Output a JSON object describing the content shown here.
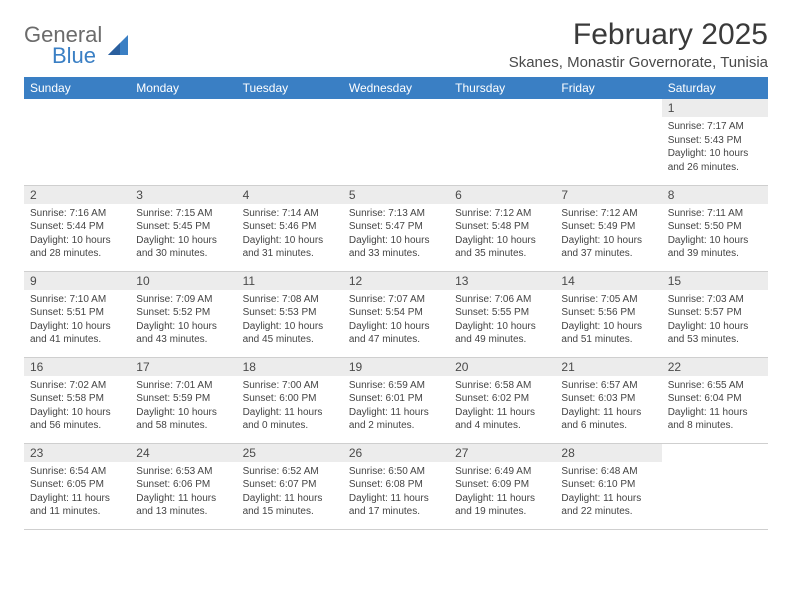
{
  "brand": {
    "name_top": "General",
    "name_bottom": "Blue",
    "text_color": "#6b6b6b",
    "accent_color": "#3a7fc4"
  },
  "title": "February 2025",
  "location": "Skanes, Monastir Governorate, Tunisia",
  "header_bg": "#3a7fc4",
  "header_text_color": "#ffffff",
  "daynum_bg": "#ececec",
  "grid_line_color": "#cfcfcf",
  "background_color": "#ffffff",
  "body_text_color": "#444444",
  "title_fontsize": 30,
  "location_fontsize": 15,
  "header_fontsize": 12,
  "body_fontsize": 10,
  "day_headers": [
    "Sunday",
    "Monday",
    "Tuesday",
    "Wednesday",
    "Thursday",
    "Friday",
    "Saturday"
  ],
  "weeks": [
    [
      null,
      null,
      null,
      null,
      null,
      null,
      {
        "n": "1",
        "sunrise": "Sunrise: 7:17 AM",
        "sunset": "Sunset: 5:43 PM",
        "daylight": "Daylight: 10 hours and 26 minutes."
      }
    ],
    [
      {
        "n": "2",
        "sunrise": "Sunrise: 7:16 AM",
        "sunset": "Sunset: 5:44 PM",
        "daylight": "Daylight: 10 hours and 28 minutes."
      },
      {
        "n": "3",
        "sunrise": "Sunrise: 7:15 AM",
        "sunset": "Sunset: 5:45 PM",
        "daylight": "Daylight: 10 hours and 30 minutes."
      },
      {
        "n": "4",
        "sunrise": "Sunrise: 7:14 AM",
        "sunset": "Sunset: 5:46 PM",
        "daylight": "Daylight: 10 hours and 31 minutes."
      },
      {
        "n": "5",
        "sunrise": "Sunrise: 7:13 AM",
        "sunset": "Sunset: 5:47 PM",
        "daylight": "Daylight: 10 hours and 33 minutes."
      },
      {
        "n": "6",
        "sunrise": "Sunrise: 7:12 AM",
        "sunset": "Sunset: 5:48 PM",
        "daylight": "Daylight: 10 hours and 35 minutes."
      },
      {
        "n": "7",
        "sunrise": "Sunrise: 7:12 AM",
        "sunset": "Sunset: 5:49 PM",
        "daylight": "Daylight: 10 hours and 37 minutes."
      },
      {
        "n": "8",
        "sunrise": "Sunrise: 7:11 AM",
        "sunset": "Sunset: 5:50 PM",
        "daylight": "Daylight: 10 hours and 39 minutes."
      }
    ],
    [
      {
        "n": "9",
        "sunrise": "Sunrise: 7:10 AM",
        "sunset": "Sunset: 5:51 PM",
        "daylight": "Daylight: 10 hours and 41 minutes."
      },
      {
        "n": "10",
        "sunrise": "Sunrise: 7:09 AM",
        "sunset": "Sunset: 5:52 PM",
        "daylight": "Daylight: 10 hours and 43 minutes."
      },
      {
        "n": "11",
        "sunrise": "Sunrise: 7:08 AM",
        "sunset": "Sunset: 5:53 PM",
        "daylight": "Daylight: 10 hours and 45 minutes."
      },
      {
        "n": "12",
        "sunrise": "Sunrise: 7:07 AM",
        "sunset": "Sunset: 5:54 PM",
        "daylight": "Daylight: 10 hours and 47 minutes."
      },
      {
        "n": "13",
        "sunrise": "Sunrise: 7:06 AM",
        "sunset": "Sunset: 5:55 PM",
        "daylight": "Daylight: 10 hours and 49 minutes."
      },
      {
        "n": "14",
        "sunrise": "Sunrise: 7:05 AM",
        "sunset": "Sunset: 5:56 PM",
        "daylight": "Daylight: 10 hours and 51 minutes."
      },
      {
        "n": "15",
        "sunrise": "Sunrise: 7:03 AM",
        "sunset": "Sunset: 5:57 PM",
        "daylight": "Daylight: 10 hours and 53 minutes."
      }
    ],
    [
      {
        "n": "16",
        "sunrise": "Sunrise: 7:02 AM",
        "sunset": "Sunset: 5:58 PM",
        "daylight": "Daylight: 10 hours and 56 minutes."
      },
      {
        "n": "17",
        "sunrise": "Sunrise: 7:01 AM",
        "sunset": "Sunset: 5:59 PM",
        "daylight": "Daylight: 10 hours and 58 minutes."
      },
      {
        "n": "18",
        "sunrise": "Sunrise: 7:00 AM",
        "sunset": "Sunset: 6:00 PM",
        "daylight": "Daylight: 11 hours and 0 minutes."
      },
      {
        "n": "19",
        "sunrise": "Sunrise: 6:59 AM",
        "sunset": "Sunset: 6:01 PM",
        "daylight": "Daylight: 11 hours and 2 minutes."
      },
      {
        "n": "20",
        "sunrise": "Sunrise: 6:58 AM",
        "sunset": "Sunset: 6:02 PM",
        "daylight": "Daylight: 11 hours and 4 minutes."
      },
      {
        "n": "21",
        "sunrise": "Sunrise: 6:57 AM",
        "sunset": "Sunset: 6:03 PM",
        "daylight": "Daylight: 11 hours and 6 minutes."
      },
      {
        "n": "22",
        "sunrise": "Sunrise: 6:55 AM",
        "sunset": "Sunset: 6:04 PM",
        "daylight": "Daylight: 11 hours and 8 minutes."
      }
    ],
    [
      {
        "n": "23",
        "sunrise": "Sunrise: 6:54 AM",
        "sunset": "Sunset: 6:05 PM",
        "daylight": "Daylight: 11 hours and 11 minutes."
      },
      {
        "n": "24",
        "sunrise": "Sunrise: 6:53 AM",
        "sunset": "Sunset: 6:06 PM",
        "daylight": "Daylight: 11 hours and 13 minutes."
      },
      {
        "n": "25",
        "sunrise": "Sunrise: 6:52 AM",
        "sunset": "Sunset: 6:07 PM",
        "daylight": "Daylight: 11 hours and 15 minutes."
      },
      {
        "n": "26",
        "sunrise": "Sunrise: 6:50 AM",
        "sunset": "Sunset: 6:08 PM",
        "daylight": "Daylight: 11 hours and 17 minutes."
      },
      {
        "n": "27",
        "sunrise": "Sunrise: 6:49 AM",
        "sunset": "Sunset: 6:09 PM",
        "daylight": "Daylight: 11 hours and 19 minutes."
      },
      {
        "n": "28",
        "sunrise": "Sunrise: 6:48 AM",
        "sunset": "Sunset: 6:10 PM",
        "daylight": "Daylight: 11 hours and 22 minutes."
      },
      null
    ]
  ]
}
